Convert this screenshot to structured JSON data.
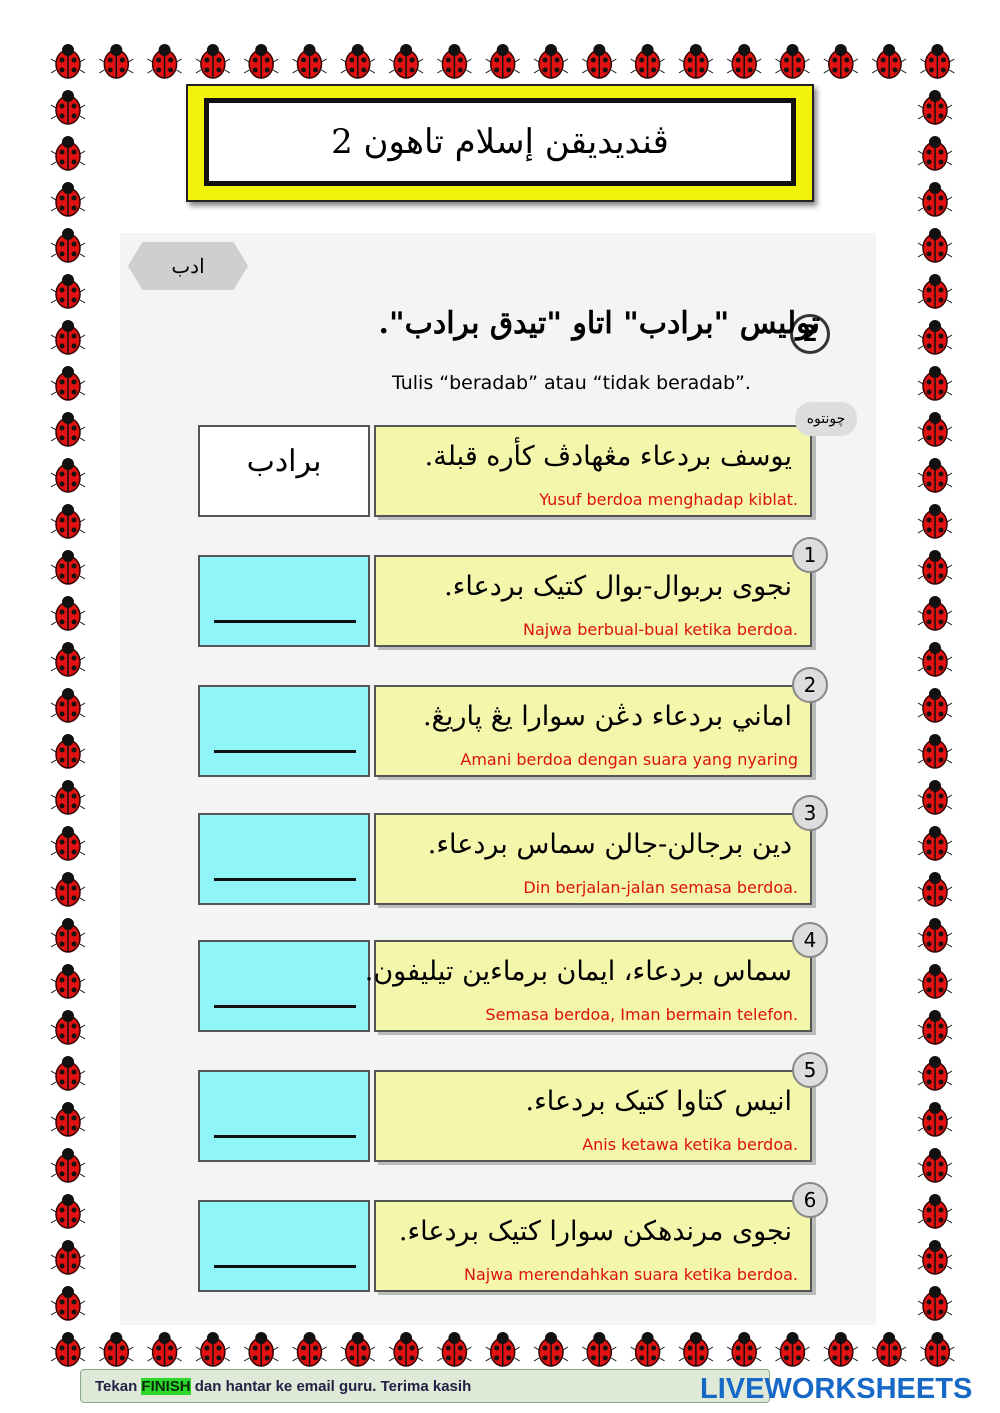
{
  "header": {
    "title": "ڤنديديقن إسلام تاهون 2"
  },
  "section": {
    "tag": "ادب",
    "number": "2",
    "instruction_jawi": "توليس \"برادب\" اتاو \"تيدق برادب\".",
    "instruction": "Tulis “beradab” atau “tidak beradab”."
  },
  "example": {
    "tag": "چونتوه",
    "answer": "برادب",
    "sentence_jawi": "يوسف بردعاء مڠهادڤ كأره قبلة.",
    "sentence": "Yusuf berdoa menghadap kiblat."
  },
  "items": [
    {
      "number": "1",
      "sentence_jawi": "نجوى بربوال-بوال كتيک بردعاء.",
      "sentence": "Najwa berbual-bual ketika berdoa."
    },
    {
      "number": "2",
      "sentence_jawi": "اماني بردعاء دڠن سوارا يڠ ڽاريڠ.",
      "sentence": "Amani berdoa dengan suara yang nyaring"
    },
    {
      "number": "3",
      "sentence_jawi": "دين برجالن-جالن سماس بردعاء.",
      "sentence": "Din berjalan-jalan semasa berdoa."
    },
    {
      "number": "4",
      "sentence_jawi": "سماس بردعاء، ايمان برماءين تيليفون.",
      "sentence": "Semasa berdoa, Iman bermain telefon."
    },
    {
      "number": "5",
      "sentence_jawi": "انيس كتاوا كتيک بردعاء.",
      "sentence": "Anis ketawa ketika berdoa."
    },
    {
      "number": "6",
      "sentence_jawi": "نجوى مرندهكن سوارا كتيک بردعاء.",
      "sentence": "Najwa merendahkan suara ketika berdoa."
    }
  ],
  "footer": {
    "note_before": "Tekan ",
    "note_highlight": "FINISH",
    "note_after": " dan hantar ke email guru. Terima kasih",
    "brand": "LIVEWORKSHEETS"
  }
}
